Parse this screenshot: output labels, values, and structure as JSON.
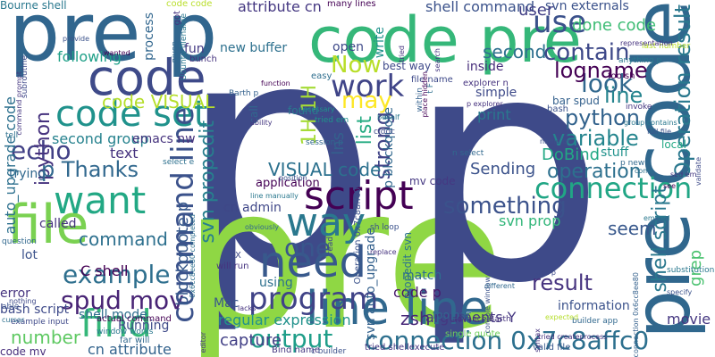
{
  "words": [
    {
      "text": "p",
      "color": "#3e4a89"
    },
    {
      "text": "pre",
      "color": "#8fd744"
    },
    {
      "text": "p",
      "color": "#3e4a89"
    },
    {
      "text": "pre code",
      "color": "#30678d"
    },
    {
      "text": "code pre",
      "color": "#35b779"
    },
    {
      "text": "pre p",
      "color": "#31668e"
    },
    {
      "text": "code",
      "color": "#3e4a89"
    },
    {
      "text": "file",
      "color": "#7ad151"
    },
    {
      "text": "line line",
      "color": "#31688e"
    },
    {
      "text": "script",
      "color": "#440154"
    },
    {
      "text": "need",
      "color": "#38598c"
    },
    {
      "text": "code set",
      "color": "#20928c"
    },
    {
      "text": "want",
      "color": "#22a884"
    },
    {
      "text": "find",
      "color": "#35b779"
    },
    {
      "text": "way",
      "color": "#2a788e"
    },
    {
      "text": "command line",
      "color": "#3b528b"
    },
    {
      "text": "connection",
      "color": "#21a685"
    },
    {
      "text": "program",
      "color": "#404387"
    },
    {
      "text": "connection 0x7c8affc0",
      "color": "#2d708e"
    },
    {
      "text": "output",
      "color": "#1f9e89"
    },
    {
      "text": "use",
      "color": "#3b518b"
    },
    {
      "text": "Operation result",
      "color": "#2a788e"
    },
    {
      "text": "work",
      "color": "#404588"
    },
    {
      "text": "example",
      "color": "#2e6f8e"
    },
    {
      "text": "spud mov",
      "color": "#482475"
    },
    {
      "text": "one",
      "color": "#39568c"
    },
    {
      "text": "echo",
      "color": "#424186"
    },
    {
      "text": "svn propedit",
      "color": "#277f8e"
    },
    {
      "text": "ipython",
      "color": "#46327e"
    },
    {
      "text": "p Thanks",
      "color": "#31688e"
    },
    {
      "text": "1H 1H",
      "color": "#a5db36"
    },
    {
      "text": "contain",
      "color": "#3e4989"
    },
    {
      "text": "something",
      "color": "#3b528b"
    },
    {
      "text": "python",
      "color": "#33638d"
    },
    {
      "text": "variable",
      "color": "#25858e"
    },
    {
      "text": "strong",
      "color": "#414487"
    },
    {
      "text": "look",
      "color": "#31688e"
    },
    {
      "text": "logname",
      "color": "#440154"
    },
    {
      "text": "line",
      "color": "#25848e"
    },
    {
      "text": "VISUAL code",
      "color": "#2c718e"
    },
    {
      "text": "code VISUAL",
      "color": "#b5de2b"
    },
    {
      "text": "Now",
      "color": "#b8de29"
    },
    {
      "text": "result",
      "color": "#46337f"
    },
    {
      "text": "shell script",
      "color": "#2a788e"
    },
    {
      "text": "operation",
      "color": "#2d708e"
    },
    {
      "text": "list",
      "color": "#25ab82"
    },
    {
      "text": "seem",
      "color": "#38588c"
    },
    {
      "text": "number",
      "color": "#5ec962"
    },
    {
      "text": "command",
      "color": "#2d708e"
    },
    {
      "text": "done code",
      "color": "#3dbc74"
    },
    {
      "text": "second",
      "color": "#2d708e"
    },
    {
      "text": "may",
      "color": "#fde725"
    },
    {
      "text": "capture",
      "color": "#424086"
    },
    {
      "text": "Sending",
      "color": "#3b528b"
    },
    {
      "text": "blockquote p",
      "color": "#38598c"
    },
    {
      "text": "grep",
      "color": "#48c16e"
    },
    {
      "text": "p blockquote",
      "color": "#31688e"
    },
    {
      "text": "DoBind",
      "color": "#22a884"
    },
    {
      "text": "second group",
      "color": "#26828e"
    },
    {
      "text": "svn prop",
      "color": "#32b67a"
    },
    {
      "text": "regular expression",
      "color": "#21918c"
    },
    {
      "text": "auto_upgrade code",
      "color": "#2d708e"
    },
    {
      "text": "cn attribute",
      "color": "#33638d"
    },
    {
      "text": "shell command",
      "color": "#3b528b"
    },
    {
      "text": "text",
      "color": "#46337f"
    },
    {
      "text": "print",
      "color": "#2a788e"
    },
    {
      "text": "arguments Y",
      "color": "#453781"
    },
    {
      "text": "C shell",
      "color": "#440154"
    },
    {
      "text": "svn externals",
      "color": "#3b528b"
    },
    {
      "text": "shell mode",
      "color": "#2e6e8e"
    },
    {
      "text": "stuff",
      "color": "#20928c"
    },
    {
      "text": "user",
      "color": "#424086"
    },
    {
      "text": "attribute cn",
      "color": "#453882"
    },
    {
      "text": "lns",
      "color": "#34618d"
    },
    {
      "text": "following",
      "color": "#1fa088"
    },
    {
      "text": "process",
      "color": "#31668e"
    },
    {
      "text": "inside",
      "color": "#472d7b"
    },
    {
      "text": "new buffer",
      "color": "#2d708e"
    },
    {
      "text": "zsh",
      "color": "#482878"
    },
    {
      "text": "movie",
      "color": "#453781"
    },
    {
      "text": "information",
      "color": "#3b528b"
    },
    {
      "text": "code p",
      "color": "#481a6c"
    },
    {
      "text": "match",
      "color": "#2e6e8e"
    },
    {
      "text": "Running",
      "color": "#3e4a89"
    },
    {
      "text": "emacs nw",
      "color": "#46337e"
    },
    {
      "text": "application",
      "color": "#440154"
    },
    {
      "text": "cn admin",
      "color": "#3f4788"
    },
    {
      "text": "using",
      "color": "#2d708e"
    },
    {
      "text": "Mac",
      "color": "#39568c"
    },
    {
      "text": "open",
      "color": "#3e4989"
    },
    {
      "text": "write",
      "color": "#21918c"
    },
    {
      "text": "mv code",
      "color": "#453882"
    },
    {
      "text": "called",
      "color": "#46337f"
    },
    {
      "text": "lot",
      "color": "#3b528b"
    },
    {
      "text": "trying",
      "color": "#31688e"
    },
    {
      "text": "error",
      "color": "#46337f"
    },
    {
      "text": "bash script",
      "color": "#3e4a89"
    },
    {
      "text": "code mv",
      "color": "#472d7b"
    },
    {
      "text": "Bourne shell",
      "color": "#2a788e"
    },
    {
      "text": "many lines",
      "color": "#440154"
    },
    {
      "text": "code code",
      "color": "#b8de29"
    },
    {
      "text": "svn auto_upgrade",
      "color": "#34618d"
    },
    {
      "text": "propedit svn",
      "color": "#2c728e"
    },
    {
      "text": "tried shellexecute",
      "color": "#453781"
    },
    {
      "text": "valid file",
      "color": "#38598c"
    },
    {
      "text": "single quote",
      "color": "#6ece58"
    },
    {
      "text": "Operation 0x7c8affc0",
      "color": "#3b528b"
    },
    {
      "text": "fun",
      "color": "#443983"
    },
    {
      "text": "bunch",
      "color": "#46337f"
    },
    {
      "text": "best way",
      "color": "#3e4989"
    },
    {
      "text": "explorer n",
      "color": "#46337f"
    },
    {
      "text": "foo sh",
      "color": "#440154"
    },
    {
      "text": "bar spud",
      "color": "#34618d"
    },
    {
      "text": "found",
      "color": "#2a788e"
    },
    {
      "text": "easy",
      "color": "#2e6e8e"
    },
    {
      "text": "call",
      "color": "#31688e"
    },
    {
      "text": "bash",
      "color": "#3b528b"
    },
    {
      "text": "simple",
      "color": "#3e4a89"
    },
    {
      "text": "p explorer",
      "color": "#46327e"
    },
    {
      "text": "necessary",
      "color": "#21918c"
    },
    {
      "text": "behalf",
      "color": "#2a788e"
    },
    {
      "text": "invoke",
      "color": "#453781"
    },
    {
      "text": "full file",
      "color": "#3b528b"
    },
    {
      "text": "local",
      "color": "#22a884"
    },
    {
      "text": "foo bar",
      "color": "#31688e"
    },
    {
      "text": "X",
      "color": "#3e4a89"
    },
    {
      "text": "will run",
      "color": "#46337f"
    },
    {
      "text": "sh loop",
      "color": "#3b528b"
    },
    {
      "text": "replace",
      "color": "#46337f"
    },
    {
      "text": "builder app",
      "color": "#31688e"
    },
    {
      "text": "advance Barth",
      "color": "#46337e"
    },
    {
      "text": "actual command",
      "color": "#440154"
    },
    {
      "text": "window works",
      "color": "#2a788e"
    },
    {
      "text": "example input",
      "color": "#3e4989"
    },
    {
      "text": "far will",
      "color": "#31688e"
    },
    {
      "text": "select e",
      "color": "#2d708e"
    },
    {
      "text": "Bind name",
      "color": "#453781"
    },
    {
      "text": "c builder",
      "color": "#3b528b"
    },
    {
      "text": "Barth p",
      "color": "#34618d"
    },
    {
      "text": "tried em",
      "color": "#20928c"
    },
    {
      "text": "session p",
      "color": "#31688e"
    },
    {
      "text": "c doc",
      "color": "#3e4a89"
    },
    {
      "text": "anything p",
      "color": "#2a788e"
    },
    {
      "text": "last number",
      "color": "#b8de29"
    },
    {
      "text": "representation",
      "color": "#46337f"
    },
    {
      "text": "expected",
      "color": "#b5de2b"
    },
    {
      "text": "substitution",
      "color": "#2a788e"
    },
    {
      "text": "specify",
      "color": "#3b528b"
    },
    {
      "text": "question",
      "color": "#31688e"
    },
    {
      "text": "nothing",
      "color": "#3e4989"
    },
    {
      "text": "cursor",
      "color": "#2d708e"
    },
    {
      "text": "able",
      "color": "#3b528b"
    },
    {
      "text": "lacks",
      "color": "#46337f"
    },
    {
      "text": "function",
      "color": "#440154"
    },
    {
      "text": "ability",
      "color": "#453781"
    },
    {
      "text": "obviously",
      "color": "#31688e"
    },
    {
      "text": "read",
      "color": "#3e4a89"
    },
    {
      "text": "tell",
      "color": "#2d708e"
    },
    {
      "text": "provide",
      "color": "#3b528b"
    },
    {
      "text": "wanted",
      "color": "#440154"
    },
    {
      "text": "got",
      "color": "#46337f"
    },
    {
      "text": "given",
      "color": "#31688e"
    },
    {
      "text": "Ubuntu filename",
      "color": "#2a788e"
    },
    {
      "text": "subroutine",
      "color": "#3e4989"
    },
    {
      "text": "command prompt",
      "color": "#453781"
    },
    {
      "text": "0x6cc8ee80 completed",
      "color": "#2d708e"
    },
    {
      "text": "connection 0x6cc8ee80",
      "color": "#34618d"
    },
    {
      "text": "console window",
      "color": "#3b528b"
    },
    {
      "text": "syntax",
      "color": "#46337f"
    },
    {
      "text": "different",
      "color": "#31688e"
    },
    {
      "text": "doc p",
      "color": "#3e4a89"
    },
    {
      "text": "em sed",
      "color": "#2a788e"
    },
    {
      "text": "sed em",
      "color": "#453781"
    },
    {
      "text": "see",
      "color": "#440154"
    },
    {
      "text": "come",
      "color": "#2d708e"
    },
    {
      "text": "name cn",
      "color": "#3b528b"
    },
    {
      "text": "p new",
      "color": "#31688e"
    },
    {
      "text": "group contains",
      "color": "#2a788e"
    },
    {
      "text": "tried",
      "color": "#46337f"
    },
    {
      "text": "file name",
      "color": "#3e4989"
    },
    {
      "text": "search",
      "color": "#453781"
    },
    {
      "text": "within",
      "color": "#34618d"
    },
    {
      "text": "t F",
      "color": "#2d708e"
    },
    {
      "text": "place hidden",
      "color": "#440154"
    },
    {
      "text": "position",
      "color": "#3b528b"
    },
    {
      "text": "n select",
      "color": "#31688e"
    },
    {
      "text": "line manually",
      "color": "#2a788e"
    },
    {
      "text": "tried createprocess",
      "color": "#46337f"
    },
    {
      "text": "validate",
      "color": "#3e4a89"
    },
    {
      "text": "editor",
      "color": "#453781"
    }
  ]
}
